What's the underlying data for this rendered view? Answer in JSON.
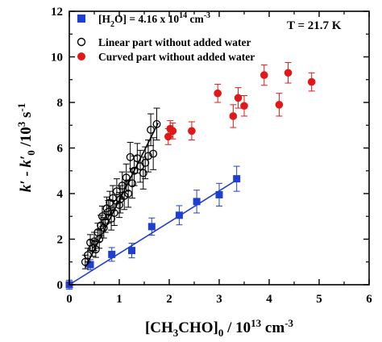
{
  "chart_data": {
    "type": "scatter",
    "x_label_parts": {
      "open": "[CH",
      "sub1": "3",
      "mid": "CHO]",
      "sub2": "0",
      "close": " / 10",
      "sup": "13",
      "unit": " cm",
      "unit_sup": "-3"
    },
    "y_label_parts": {
      "k1": "k′ - k′",
      "sub": "0",
      "mid": " /10",
      "sup1": "3",
      "unit": " s",
      "sup2": "-1"
    },
    "xlim": [
      0,
      6
    ],
    "ylim": [
      0,
      12
    ],
    "x_ticks": [
      "0",
      "1",
      "2",
      "3",
      "4",
      "5",
      "6"
    ],
    "y_ticks": [
      "0",
      "2",
      "4",
      "6",
      "8",
      "10",
      "12"
    ],
    "annotation": "T = 21.7 K",
    "legend": [
      {
        "marker": "square",
        "color": "#1f3fd1",
        "parts": {
          "a": "[H",
          "sub": "2",
          "b": "O] = 4.16 x 10",
          "sup": "14",
          "c": " cm",
          "sup2": "-3"
        }
      },
      {
        "marker": "open-circle",
        "color": "#000000",
        "label": "Linear part without added water"
      },
      {
        "marker": "filled-circle",
        "color": "#e01818",
        "label": "Curved part without added water"
      }
    ],
    "series": [
      {
        "color": "#1f3fd1",
        "marker": "square",
        "x": [
          0.0,
          0.42,
          0.85,
          1.25,
          1.65,
          2.2,
          2.55,
          3.0,
          3.35
        ],
        "y": [
          0.0,
          0.88,
          1.33,
          1.5,
          2.55,
          3.05,
          3.65,
          3.95,
          4.65
        ],
        "err": [
          0.2,
          0.22,
          0.3,
          0.32,
          0.38,
          0.42,
          0.5,
          0.5,
          0.55
        ],
        "fit": {
          "x": [
            0.0,
            3.35
          ],
          "y": [
            0.0,
            4.6
          ]
        }
      },
      {
        "color": "#000000",
        "marker": "open-circle",
        "x": [
          0.32,
          0.37,
          0.42,
          0.46,
          0.5,
          0.53,
          0.57,
          0.6,
          0.63,
          0.66,
          0.69,
          0.72,
          0.75,
          0.78,
          0.81,
          0.84,
          0.87,
          0.9,
          0.95,
          1.0,
          1.02,
          1.06,
          1.1,
          1.14,
          1.18,
          1.22,
          1.26,
          1.3,
          1.36,
          1.42,
          1.48,
          1.52,
          1.58,
          1.63,
          1.68,
          1.75
        ],
        "y": [
          1.0,
          1.3,
          1.85,
          1.6,
          1.9,
          1.55,
          2.3,
          2.0,
          2.6,
          3.0,
          2.5,
          2.75,
          3.35,
          3.2,
          3.6,
          2.9,
          3.8,
          3.15,
          4.1,
          3.5,
          3.75,
          4.35,
          3.9,
          4.7,
          4.0,
          5.6,
          4.45,
          5.0,
          5.55,
          5.2,
          4.9,
          5.35,
          5.65,
          6.8,
          5.75,
          7.05
        ],
        "err": [
          0.3,
          0.3,
          0.35,
          0.35,
          0.4,
          0.35,
          0.4,
          0.4,
          0.45,
          0.45,
          0.45,
          0.45,
          0.5,
          0.5,
          0.5,
          0.5,
          0.55,
          0.55,
          0.55,
          0.55,
          0.6,
          0.6,
          0.6,
          0.6,
          0.6,
          0.65,
          0.65,
          0.65,
          0.65,
          0.7,
          0.7,
          0.7,
          0.7,
          0.7,
          0.7,
          0.7
        ],
        "fit": {
          "x": [
            0.32,
            1.78
          ],
          "y": [
            0.75,
            7.1
          ]
        }
      },
      {
        "color": "#e01818",
        "marker": "filled-circle",
        "x": [
          1.98,
          2.02,
          2.07,
          2.45,
          2.97,
          3.28,
          3.38,
          3.5,
          3.9,
          4.2,
          4.38,
          4.85
        ],
        "y": [
          6.5,
          6.85,
          6.75,
          6.75,
          8.4,
          7.4,
          8.2,
          7.85,
          9.2,
          7.9,
          9.3,
          8.9
        ],
        "err": [
          0.35,
          0.35,
          0.35,
          0.4,
          0.4,
          0.5,
          0.45,
          0.45,
          0.45,
          0.5,
          0.45,
          0.4
        ]
      }
    ]
  }
}
